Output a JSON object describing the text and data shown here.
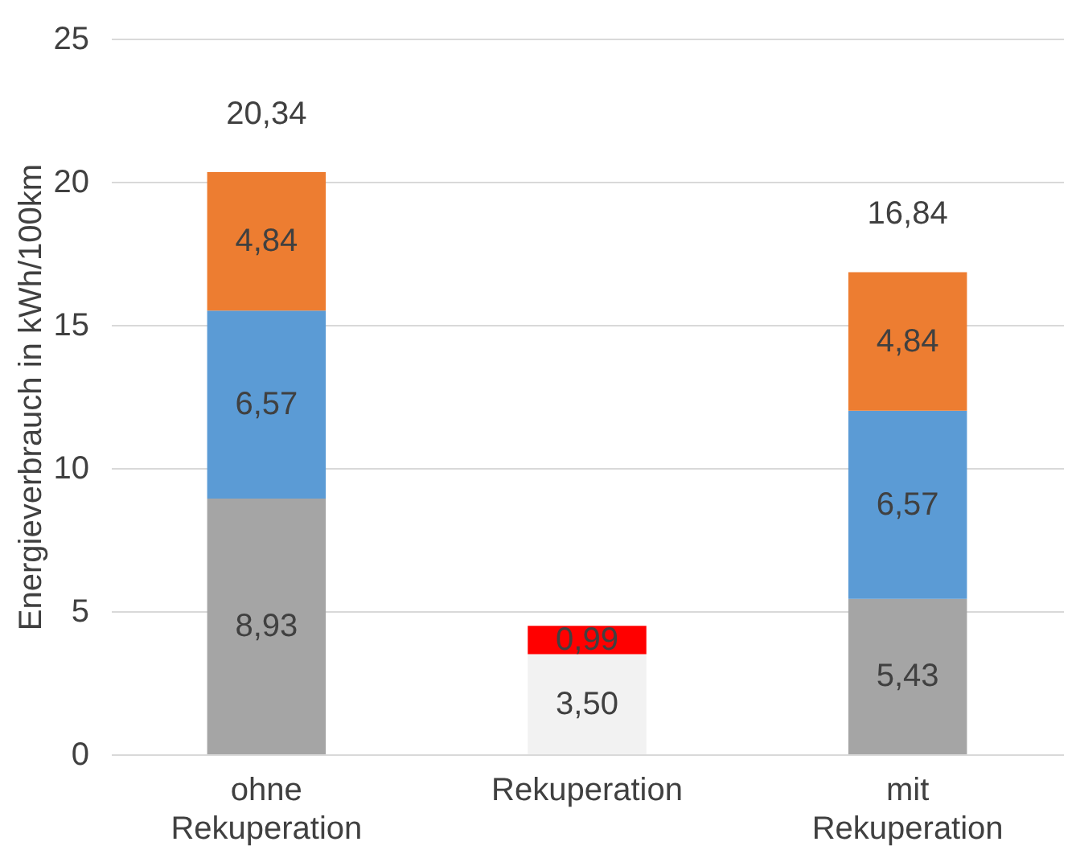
{
  "chart_data": {
    "type": "bar",
    "stacked": true,
    "categories": [
      "ohne Rekuperation",
      "Rekuperation",
      "mit Rekuperation"
    ],
    "ylabel": "Energieverbrauch in kWh/100km",
    "ylim": [
      0,
      25
    ],
    "yticks": [
      0,
      5,
      10,
      15,
      20,
      25
    ],
    "grid": "y",
    "series": [
      {
        "values": [
          8.93,
          3.5,
          5.43
        ],
        "colors": [
          "#a5a5a5",
          "#f2f2f2",
          "#a5a5a5"
        ],
        "value_labels": [
          "8,93",
          "3,50",
          "5,43"
        ]
      },
      {
        "values": [
          6.57,
          0.99,
          6.57
        ],
        "colors": [
          "#5b9bd5",
          "#ff0000",
          "#5b9bd5"
        ],
        "value_labels": [
          "6,57",
          "0,99",
          "6,57"
        ]
      },
      {
        "values": [
          4.84,
          null,
          4.84
        ],
        "color": "#ed7d31",
        "value_labels": [
          "4,84",
          null,
          "4,84"
        ]
      }
    ],
    "totals": [
      "20,34",
      null,
      "16,84"
    ]
  }
}
